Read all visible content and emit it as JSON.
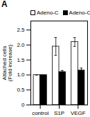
{
  "chart_data": {
    "type": "bar",
    "title": "A",
    "categories": [
      "control",
      "S1P",
      "VEGF"
    ],
    "series": [
      {
        "name": "Adeno-C",
        "color": "white",
        "values": [
          1.0,
          1.95,
          2.1
        ],
        "errors": [
          0.0,
          0.3,
          0.15
        ]
      },
      {
        "name": "Adeno-Cre",
        "color": "black",
        "values": [
          1.0,
          1.1,
          1.15
        ],
        "errors": [
          0.0,
          0.05,
          0.08
        ]
      }
    ],
    "ylabel": "Attached cells\n(Fold increase)",
    "ylim": [
      0,
      2.8
    ],
    "yticks": [
      0,
      0.5,
      {
        "value": 1.0,
        "label": "1.0"
      },
      1.5,
      {
        "value": 2.0,
        "label": "2.0"
      },
      2.5
    ],
    "legend": "upper left"
  }
}
